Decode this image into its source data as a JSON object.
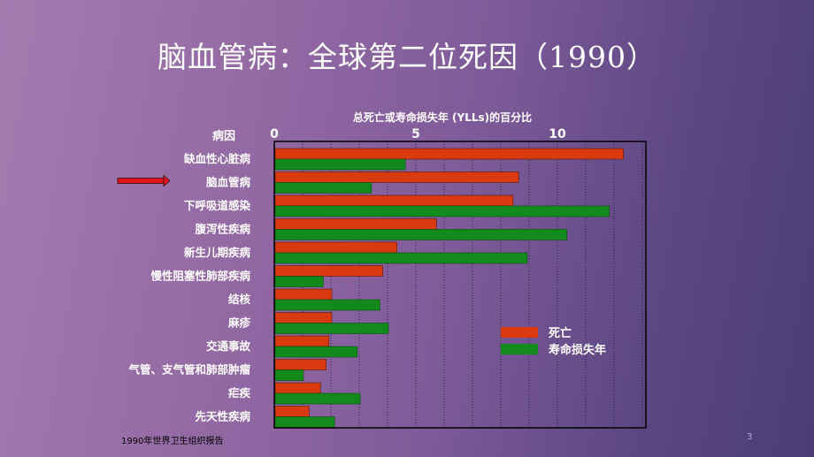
{
  "slide": {
    "title": "脑血管病：全球第二位死因（1990）",
    "source": "1990年世界卫生组织报告",
    "page_number": "3"
  },
  "colors": {
    "death": "#d93a10",
    "yll": "#138a1c",
    "pointer_arrow": "#e0141e"
  },
  "chart_data": {
    "type": "bar",
    "orientation": "horizontal",
    "title": "总死亡或寿命损失年 (YLLs)的百分比",
    "category_header": "病因",
    "categories": [
      "缺血性心脏病",
      "脑血管病",
      "下呼吸道感染",
      "腹泻性疾病",
      "新生儿期疾病",
      "慢性阻塞性肺部疾病",
      "结核",
      "麻疹",
      "交通事故",
      "气管、支气管和肺部肿瘤",
      "疟疾",
      "先天性疾病"
    ],
    "series": [
      {
        "name": "死亡",
        "values": [
          12.3,
          8.6,
          8.4,
          5.7,
          4.3,
          3.8,
          2.0,
          2.0,
          1.9,
          1.8,
          1.6,
          1.2
        ]
      },
      {
        "name": "寿命损失年",
        "values": [
          4.6,
          3.4,
          11.8,
          10.3,
          8.9,
          1.7,
          3.7,
          4.0,
          2.9,
          1.0,
          3.0,
          2.1
        ]
      }
    ],
    "x_ticks": [
      "0",
      "5",
      "10"
    ],
    "xlim": [
      0,
      13
    ],
    "grid": "vertical-dotted",
    "legend_position": "right",
    "highlighted_category": "脑血管病"
  }
}
